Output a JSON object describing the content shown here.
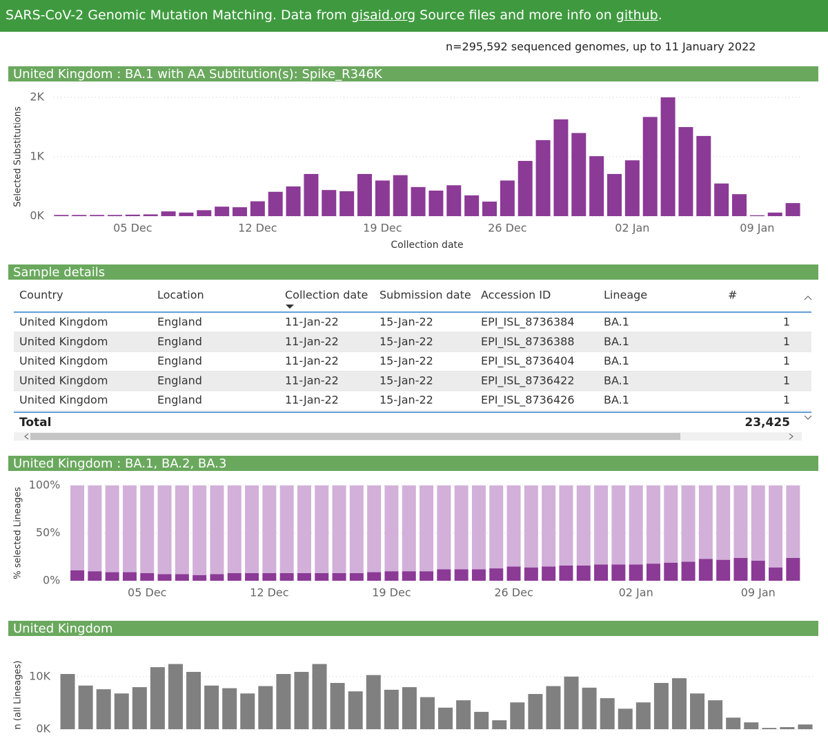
{
  "header": {
    "parts": [
      "SARS-CoV-2 Genomic Mutation Matching. Data from ",
      "gisaid.org",
      " Source files and more info on ",
      "github",
      "."
    ]
  },
  "summary": "n=295,592 sequenced genomes, up to 11 January 2022",
  "table": {
    "title": "Sample details",
    "columns": [
      "Country",
      "Location",
      "Collection date",
      "Submission date",
      "Accession ID",
      "Lineage",
      "#"
    ],
    "rows": [
      [
        "United Kingdom",
        "England",
        "11-Jan-22",
        "15-Jan-22",
        "EPI_ISL_8736384",
        "BA.1",
        1
      ],
      [
        "United Kingdom",
        "England",
        "11-Jan-22",
        "15-Jan-22",
        "EPI_ISL_8736388",
        "BA.1",
        1
      ],
      [
        "United Kingdom",
        "England",
        "11-Jan-22",
        "15-Jan-22",
        "EPI_ISL_8736404",
        "BA.1",
        1
      ],
      [
        "United Kingdom",
        "England",
        "11-Jan-22",
        "15-Jan-22",
        "EPI_ISL_8736422",
        "BA.1",
        1
      ],
      [
        "United Kingdom",
        "England",
        "11-Jan-22",
        "15-Jan-22",
        "EPI_ISL_8736426",
        "BA.1",
        1
      ]
    ],
    "total_label": "Total",
    "total": "23,425"
  },
  "chart_data": [
    {
      "type": "bar",
      "title": "United Kingdom : BA.1 with AA Subtitution(s): Spike_R346K",
      "ylabel": "Selected Substitutions",
      "xlabel": "Collection date",
      "color": "#8b3a96",
      "categories": [
        null,
        null,
        null,
        null,
        "05 Dec",
        null,
        null,
        null,
        null,
        null,
        null,
        "12 Dec",
        null,
        null,
        null,
        null,
        null,
        null,
        "19 Dec",
        null,
        null,
        null,
        null,
        null,
        null,
        "26 Dec",
        null,
        null,
        null,
        null,
        null,
        null,
        "02 Jan",
        null,
        null,
        null,
        null,
        null,
        null,
        "09 Jan",
        null,
        null
      ],
      "values": [
        20,
        20,
        20,
        20,
        25,
        30,
        80,
        60,
        100,
        160,
        150,
        250,
        410,
        500,
        710,
        440,
        420,
        710,
        600,
        690,
        490,
        430,
        520,
        350,
        245,
        600,
        930,
        1280,
        1630,
        1400,
        1010,
        710,
        940,
        1670,
        2000,
        1500,
        1350,
        550,
        370,
        15,
        60,
        220
      ],
      "ylim": [
        0,
        2000
      ],
      "yticks": [
        {
          "value": 0,
          "label": "0K"
        },
        {
          "value": 1000,
          "label": "1K"
        },
        {
          "value": 2000,
          "label": "2K"
        }
      ],
      "grid": true
    },
    {
      "type": "stacked_bar",
      "title": "United Kingdom : BA.1, BA.2, BA.3",
      "ylabel": "% selected Lineages",
      "categories": [
        null,
        null,
        null,
        null,
        "05 Dec",
        null,
        null,
        null,
        null,
        null,
        null,
        "12 Dec",
        null,
        null,
        null,
        null,
        null,
        null,
        "19 Dec",
        null,
        null,
        null,
        null,
        null,
        null,
        "26 Dec",
        null,
        null,
        null,
        null,
        null,
        null,
        "02 Jan",
        null,
        null,
        null,
        null,
        null,
        null,
        "09 Jan",
        null,
        null
      ],
      "series": [
        {
          "color": "#8b3a96",
          "values": [
            11,
            10,
            9,
            9,
            8,
            7,
            7,
            6,
            7,
            8,
            8,
            8,
            8,
            8,
            8,
            8,
            8,
            9,
            10,
            10,
            10,
            12,
            12,
            12,
            13,
            15,
            14,
            15,
            16,
            16,
            17,
            17,
            17,
            18,
            19,
            20,
            23,
            22,
            24,
            21,
            14,
            24
          ]
        },
        {
          "color": "#d2b0d9",
          "values": [
            89,
            90,
            91,
            91,
            92,
            93,
            93,
            94,
            93,
            92,
            92,
            92,
            92,
            92,
            92,
            92,
            92,
            91,
            90,
            90,
            90,
            88,
            88,
            88,
            87,
            85,
            86,
            85,
            84,
            84,
            83,
            83,
            83,
            82,
            81,
            80,
            77,
            78,
            76,
            79,
            86,
            76
          ]
        }
      ],
      "ylim": [
        0,
        100
      ],
      "yticks": [
        {
          "value": 0,
          "label": "0%"
        },
        {
          "value": 50,
          "label": "50%"
        },
        {
          "value": 100,
          "label": "100%"
        }
      ],
      "grid": true
    },
    {
      "type": "bar",
      "title": "United Kingdom",
      "ylabel": "n (all Lineages)",
      "color": "#808080",
      "values": [
        10500,
        8300,
        7600,
        6800,
        8000,
        11800,
        12400,
        10900,
        8300,
        7800,
        6800,
        8200,
        10500,
        10900,
        12400,
        8800,
        7200,
        10300,
        7500,
        8000,
        6100,
        4100,
        5500,
        3300,
        1700,
        5100,
        6700,
        8200,
        10000,
        7900,
        5900,
        3900,
        5100,
        8800,
        9700,
        6800,
        5500,
        2200,
        1300,
        250,
        400,
        900
      ],
      "ylim": [
        0,
        13000
      ],
      "yticks": [
        {
          "value": 0,
          "label": "0K"
        },
        {
          "value": 10000,
          "label": "10K"
        }
      ],
      "grid": true
    }
  ]
}
